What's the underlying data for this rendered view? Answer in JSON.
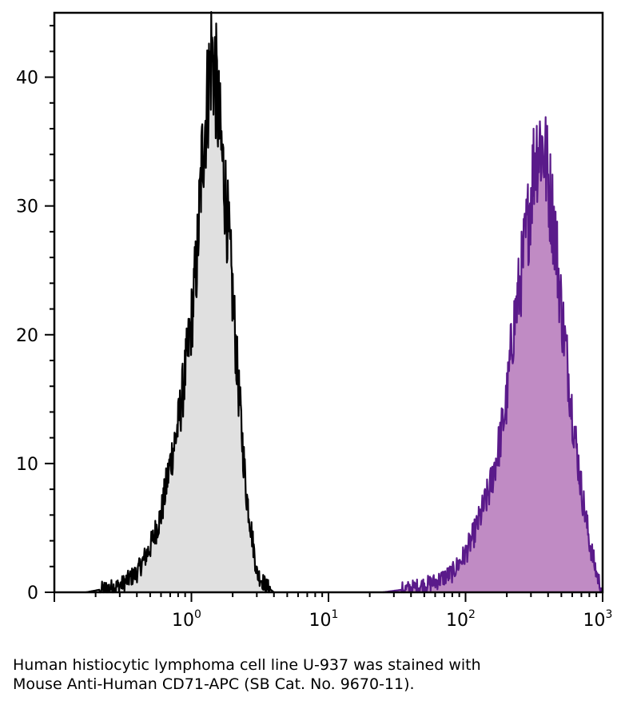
{
  "chart_data": {
    "type": "area",
    "x_scale": "log",
    "xlim": [
      0.1,
      1000
    ],
    "ylim": [
      0,
      45
    ],
    "x_ticks": [
      {
        "value": 1,
        "base": "10",
        "exp": "0"
      },
      {
        "value": 10,
        "base": "10",
        "exp": "1"
      },
      {
        "value": 100,
        "base": "10",
        "exp": "2"
      },
      {
        "value": 1000,
        "base": "10",
        "exp": "3"
      }
    ],
    "y_ticks": [
      0,
      10,
      20,
      30,
      40
    ],
    "grid": false,
    "series": [
      {
        "color": "#000000",
        "fill": "#e0e0e0",
        "x": [
          0.17,
          0.3,
          0.4,
          0.5,
          0.6,
          0.7,
          0.8,
          0.9,
          1.0,
          1.1,
          1.2,
          1.3,
          1.4,
          1.5,
          1.6,
          1.7,
          1.8,
          2.0,
          2.2,
          2.5,
          2.8,
          3.0,
          3.5,
          4.0
        ],
        "y": [
          0,
          0.5,
          1.5,
          3.5,
          6,
          10,
          13,
          17,
          21,
          26,
          34,
          38,
          42,
          40,
          36,
          33,
          30,
          23,
          16,
          8,
          4,
          1.5,
          0.5,
          0
        ]
      },
      {
        "color": "#5a1a8a",
        "fill": "#c08bc4",
        "x": [
          25,
          40,
          60,
          80,
          100,
          120,
          150,
          180,
          200,
          220,
          250,
          280,
          300,
          320,
          350,
          380,
          400,
          450,
          500,
          550,
          600,
          700,
          800,
          900,
          1000
        ],
        "y": [
          0,
          0.3,
          0.8,
          1.5,
          3,
          5,
          8,
          12,
          15,
          20,
          24,
          28,
          31,
          34,
          35,
          34,
          32,
          28,
          22,
          18,
          14,
          8,
          4,
          1.5,
          0
        ]
      }
    ]
  },
  "caption": {
    "line1": "Human histiocytic lymphoma cell line U-937 was stained with",
    "line2": "Mouse Anti-Human CD71-APC (SB Cat. No. 9670-11)."
  }
}
